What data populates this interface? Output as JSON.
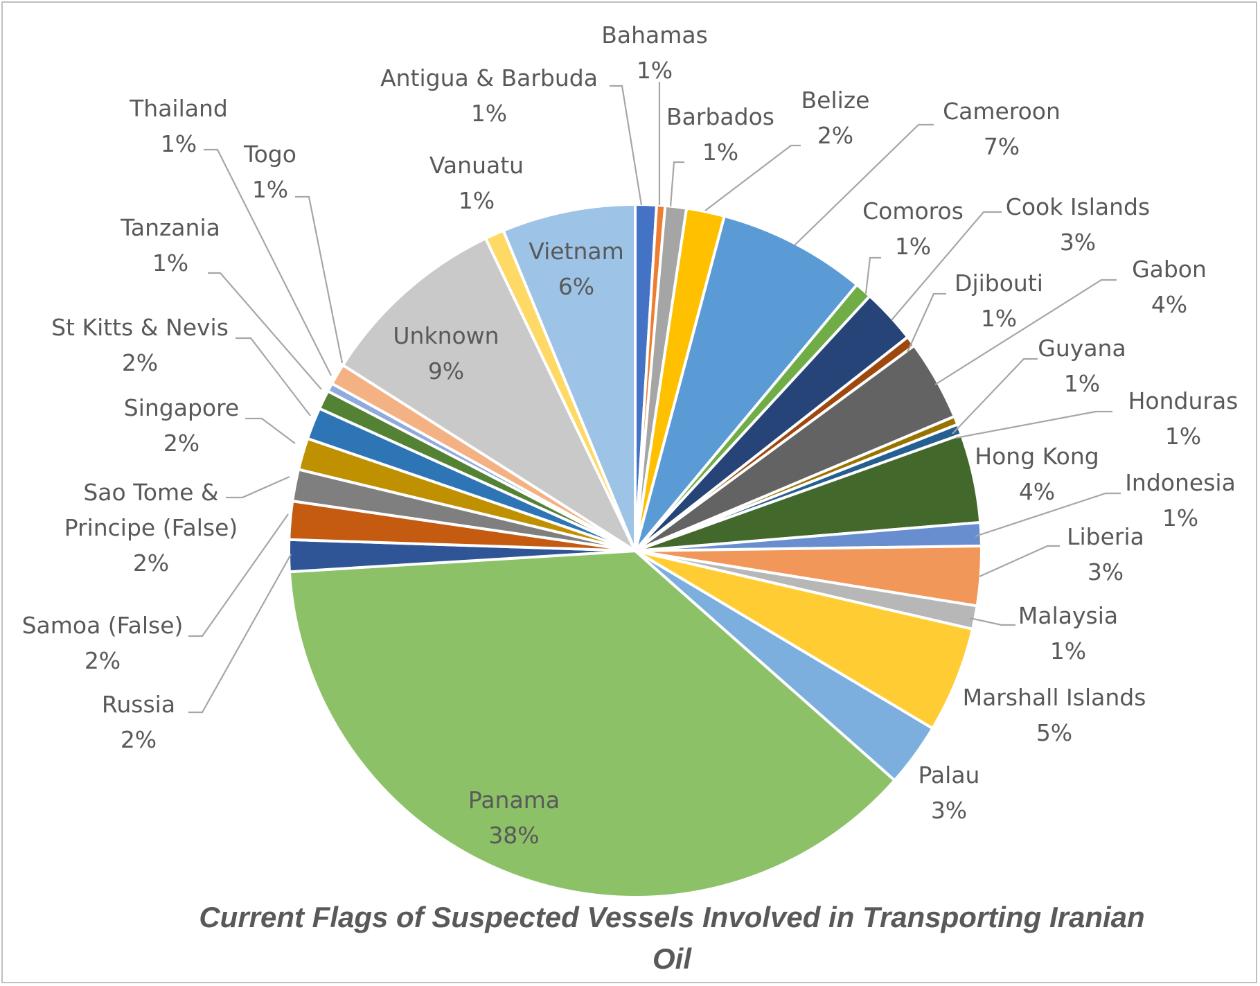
{
  "chart_data": {
    "type": "pie",
    "title_lines": [
      "Current Flags of  Suspected Vessels Involved in Transporting Iranian",
      "Oil"
    ],
    "slices": [
      {
        "name": "Bahamas",
        "label": "1%",
        "value": 1.0,
        "color": "#4472C4"
      },
      {
        "name": "Barbados_gap",
        "label": "",
        "value": 0.4,
        "color": "#ED7D31"
      },
      {
        "name": "Barbados",
        "label": "1%",
        "value": 1.0,
        "color": "#A5A5A5"
      },
      {
        "name": "Belize",
        "label": "2%",
        "value": 1.8,
        "color": "#FFC000"
      },
      {
        "name": "Cameroon",
        "label": "7%",
        "value": 7.0,
        "color": "#5B9BD5"
      },
      {
        "name": "Comoros",
        "label": "1%",
        "value": 0.8,
        "color": "#70AD47"
      },
      {
        "name": "Cook Islands",
        "label": "3%",
        "value": 2.6,
        "color": "#264478"
      },
      {
        "name": "Djibouti",
        "label": "1%",
        "value": 0.5,
        "color": "#9E480E"
      },
      {
        "name": "Gabon",
        "label": "4%",
        "value": 3.8,
        "color": "#636363"
      },
      {
        "name": "Guyana",
        "label": "1%",
        "value": 0.4,
        "color": "#997300"
      },
      {
        "name": "Honduras",
        "label": "1%",
        "value": 0.5,
        "color": "#255E91"
      },
      {
        "name": "Hong Kong",
        "label": "4%",
        "value": 4.2,
        "color": "#43682B"
      },
      {
        "name": "Indonesia",
        "label": "1%",
        "value": 1.1,
        "color": "#698ED0"
      },
      {
        "name": "Liberia",
        "label": "3%",
        "value": 2.8,
        "color": "#F1975A"
      },
      {
        "name": "Malaysia",
        "label": "1%",
        "value": 1.1,
        "color": "#B7B7B7"
      },
      {
        "name": "Marshall Islands",
        "label": "5%",
        "value": 5.0,
        "color": "#FFCD33"
      },
      {
        "name": "Palau",
        "label": "3%",
        "value": 3.0,
        "color": "#7CAFDD"
      },
      {
        "name": "Panama",
        "label": "38%",
        "value": 38.0,
        "color": "#8CC168"
      },
      {
        "name": "Russia",
        "label": "2%",
        "value": 1.5,
        "color": "#2F5597"
      },
      {
        "name": "Samoa (False)",
        "label": "2%",
        "value": 1.8,
        "color": "#C55A11"
      },
      {
        "name": "Sao Tome & Principe (False)",
        "label": "2%",
        "value": 1.5,
        "color": "#7F7F7F"
      },
      {
        "name": "Singapore",
        "label": "2%",
        "value": 1.5,
        "color": "#BF9000"
      },
      {
        "name": "St Kitts & Nevis",
        "label": "2%",
        "value": 1.5,
        "color": "#2E75B6"
      },
      {
        "name": "Tanzania",
        "label": "1%",
        "value": 0.9,
        "color": "#548235"
      },
      {
        "name": "Thailand",
        "label": "1%",
        "value": 0.4,
        "color": "#8FAADC"
      },
      {
        "name": "Togo",
        "label": "1%",
        "value": 1.0,
        "color": "#F4B183"
      },
      {
        "name": "Unknown",
        "label": "9%",
        "value": 9.0,
        "color": "#C9C9C9"
      },
      {
        "name": "Vanuatu",
        "label": "1%",
        "value": 0.9,
        "color": "#FFD966"
      },
      {
        "name": "Vietnam",
        "label": "6%",
        "value": 6.3,
        "color": "#9DC3E6"
      }
    ],
    "labels": [
      {
        "slice": "Bahamas",
        "lines": [
          "Bahamas",
          "1%"
        ]
      },
      {
        "slice": "Antigua & Barbuda",
        "lines": [
          "Antigua & Barbuda",
          "1%"
        ]
      },
      {
        "slice": "Barbados",
        "lines": [
          "Barbados",
          "1%"
        ]
      },
      {
        "slice": "Belize",
        "lines": [
          "Belize",
          "2%"
        ]
      },
      {
        "slice": "Cameroon",
        "lines": [
          "Cameroon",
          "7%"
        ]
      },
      {
        "slice": "Comoros",
        "lines": [
          "Comoros",
          "1%"
        ]
      },
      {
        "slice": "Cook Islands",
        "lines": [
          "Cook Islands",
          "3%"
        ]
      },
      {
        "slice": "Djibouti",
        "lines": [
          "Djibouti",
          "1%"
        ]
      },
      {
        "slice": "Gabon",
        "lines": [
          "Gabon",
          "4%"
        ]
      },
      {
        "slice": "Guyana",
        "lines": [
          "Guyana",
          "1%"
        ]
      },
      {
        "slice": "Honduras",
        "lines": [
          "Honduras",
          "1%"
        ]
      },
      {
        "slice": "Hong Kong",
        "lines": [
          "Hong Kong",
          "4%"
        ]
      },
      {
        "slice": "Indonesia",
        "lines": [
          "Indonesia",
          "1%"
        ]
      },
      {
        "slice": "Liberia",
        "lines": [
          "Liberia",
          "3%"
        ]
      },
      {
        "slice": "Malaysia",
        "lines": [
          "Malaysia",
          "1%"
        ]
      },
      {
        "slice": "Marshall Islands",
        "lines": [
          "Marshall Islands",
          "5%"
        ]
      },
      {
        "slice": "Palau",
        "lines": [
          "Palau",
          "3%"
        ]
      },
      {
        "slice": "Panama",
        "lines": [
          "Panama",
          "38%"
        ]
      },
      {
        "slice": "Russia",
        "lines": [
          "Russia",
          "2%"
        ]
      },
      {
        "slice": "Samoa (False)",
        "lines": [
          "Samoa (False)",
          "2%"
        ]
      },
      {
        "slice": "Sao Tome & Principe (False)",
        "lines": [
          "Sao Tome &",
          "Principe (False)",
          "2%"
        ]
      },
      {
        "slice": "Singapore",
        "lines": [
          "Singapore",
          "2%"
        ]
      },
      {
        "slice": "St Kitts & Nevis",
        "lines": [
          "St Kitts & Nevis",
          "2%"
        ]
      },
      {
        "slice": "Tanzania",
        "lines": [
          "Tanzania",
          "1%"
        ]
      },
      {
        "slice": "Thailand",
        "lines": [
          "Thailand",
          "1%"
        ]
      },
      {
        "slice": "Togo",
        "lines": [
          "Togo",
          "1%"
        ]
      },
      {
        "slice": "Unknown",
        "lines": [
          "Unknown",
          "9%"
        ]
      },
      {
        "slice": "Vanuatu",
        "lines": [
          "Vanuatu",
          "1%"
        ]
      },
      {
        "slice": "Vietnam",
        "lines": [
          "Vietnam",
          "6%"
        ]
      }
    ]
  }
}
